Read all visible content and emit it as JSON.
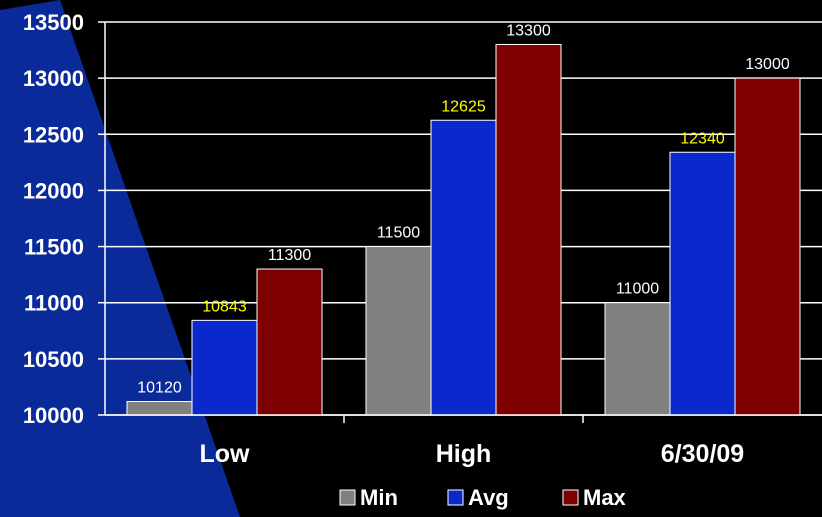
{
  "chart_data": {
    "type": "bar",
    "categories": [
      "Low",
      "High",
      "6/30/09"
    ],
    "series": [
      {
        "name": "Min",
        "values": [
          10120,
          11500,
          11000
        ],
        "color": "#808080",
        "label_color": "#ffffff"
      },
      {
        "name": "Avg",
        "values": [
          10843,
          12625,
          12340
        ],
        "color": "#0a28cc",
        "label_color": "#ffff00"
      },
      {
        "name": "Max",
        "values": [
          11300,
          13300,
          13000
        ],
        "color": "#7f0000",
        "label_color": "#ffffff"
      }
    ],
    "ylim": [
      10000,
      13500
    ],
    "yticks": [
      10000,
      10500,
      11000,
      11500,
      12000,
      12500,
      13000,
      13500
    ],
    "grid": true,
    "legend": "bottom",
    "background": "#000000",
    "decor_color": "#0a2a9a"
  }
}
